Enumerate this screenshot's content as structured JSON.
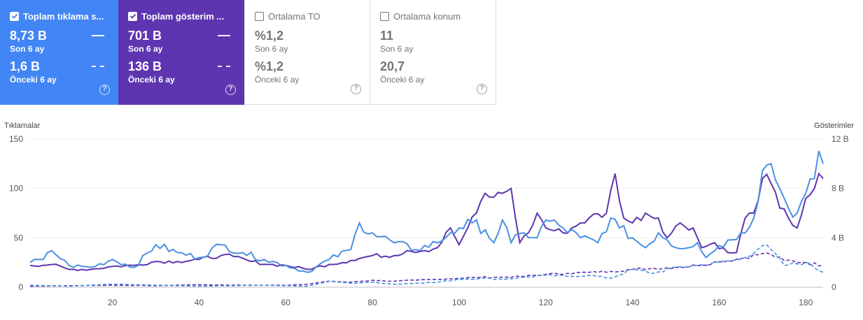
{
  "cards": [
    {
      "label": "Toplam tıklama s...",
      "checked": true,
      "current_value": "8,73 B",
      "current_period": "Son 6 ay",
      "previous_value": "1,6 B",
      "previous_period": "Önceki 6 ay",
      "color": "#4285f4",
      "icon": "help-icon"
    },
    {
      "label": "Toplam gösterim ...",
      "checked": true,
      "current_value": "701 B",
      "current_period": "Son 6 ay",
      "previous_value": "136 B",
      "previous_period": "Önceki 6 ay",
      "color": "#5e35b1",
      "icon": "help-icon"
    },
    {
      "label": "Ortalama TO",
      "checked": false,
      "current_value": "%1,2",
      "current_period": "Son 6 ay",
      "previous_value": "%1,2",
      "previous_period": "Önceki 6 ay",
      "icon": "help-icon"
    },
    {
      "label": "Ortalama konum",
      "checked": false,
      "current_value": "11",
      "current_period": "Son 6 ay",
      "previous_value": "20,7",
      "previous_period": "Önceki 6 ay",
      "icon": "help-icon"
    }
  ],
  "chart_data": {
    "type": "line",
    "left_axis": {
      "label": "Tıklamalar",
      "ticks": [
        "150",
        "100",
        "50",
        "0"
      ],
      "range": [
        0,
        150
      ]
    },
    "right_axis": {
      "label": "Gösterimler",
      "ticks": [
        "12 B",
        "8 B",
        "4 B",
        "0"
      ],
      "range": [
        0,
        12000
      ]
    },
    "x_axis": {
      "ticks": [
        "20",
        "40",
        "60",
        "80",
        "100",
        "120",
        "140",
        "160",
        "180"
      ],
      "range": [
        1,
        184
      ]
    },
    "grid": true,
    "series_anchors": {
      "clicks_current": [
        [
          1,
          25
        ],
        [
          4,
          28
        ],
        [
          6,
          37
        ],
        [
          10,
          22
        ],
        [
          15,
          20
        ],
        [
          20,
          28
        ],
        [
          25,
          20
        ],
        [
          30,
          43
        ],
        [
          35,
          35
        ],
        [
          40,
          30
        ],
        [
          45,
          43
        ],
        [
          50,
          35
        ],
        [
          55,
          28
        ],
        [
          60,
          22
        ],
        [
          65,
          15
        ],
        [
          70,
          28
        ],
        [
          75,
          38
        ],
        [
          77,
          65
        ],
        [
          80,
          55
        ],
        [
          85,
          45
        ],
        [
          90,
          38
        ],
        [
          95,
          45
        ],
        [
          98,
          55
        ],
        [
          100,
          60
        ],
        [
          103,
          65
        ],
        [
          106,
          58
        ],
        [
          108,
          45
        ],
        [
          110,
          68
        ],
        [
          112,
          45
        ],
        [
          115,
          55
        ],
        [
          118,
          50
        ],
        [
          120,
          68
        ],
        [
          124,
          60
        ],
        [
          128,
          50
        ],
        [
          132,
          45
        ],
        [
          135,
          70
        ],
        [
          137,
          60
        ],
        [
          140,
          50
        ],
        [
          143,
          40
        ],
        [
          146,
          55
        ],
        [
          148,
          48
        ],
        [
          150,
          40
        ],
        [
          155,
          45
        ],
        [
          157,
          30
        ],
        [
          160,
          42
        ],
        [
          163,
          48
        ],
        [
          165,
          55
        ],
        [
          168,
          70
        ],
        [
          170,
          118
        ],
        [
          172,
          125
        ],
        [
          174,
          100
        ],
        [
          176,
          80
        ],
        [
          178,
          75
        ],
        [
          180,
          95
        ],
        [
          182,
          110
        ],
        [
          183,
          138
        ],
        [
          184,
          125
        ]
      ],
      "impressions_current": [
        [
          1,
          1760
        ],
        [
          6,
          1840
        ],
        [
          10,
          1440
        ],
        [
          15,
          1440
        ],
        [
          20,
          1680
        ],
        [
          25,
          1760
        ],
        [
          30,
          2080
        ],
        [
          35,
          2080
        ],
        [
          40,
          2240
        ],
        [
          45,
          2560
        ],
        [
          48,
          2480
        ],
        [
          52,
          2080
        ],
        [
          56,
          1840
        ],
        [
          60,
          1760
        ],
        [
          65,
          1440
        ],
        [
          70,
          1840
        ],
        [
          75,
          2160
        ],
        [
          80,
          2560
        ],
        [
          85,
          2560
        ],
        [
          88,
          2960
        ],
        [
          92,
          2960
        ],
        [
          95,
          3200
        ],
        [
          98,
          4800
        ],
        [
          100,
          3440
        ],
        [
          102,
          4800
        ],
        [
          104,
          6000
        ],
        [
          106,
          7600
        ],
        [
          108,
          7280
        ],
        [
          110,
          7600
        ],
        [
          112,
          8000
        ],
        [
          114,
          3600
        ],
        [
          116,
          4400
        ],
        [
          118,
          6000
        ],
        [
          120,
          4800
        ],
        [
          124,
          4400
        ],
        [
          128,
          5200
        ],
        [
          130,
          5600
        ],
        [
          134,
          6000
        ],
        [
          136,
          9200
        ],
        [
          138,
          5600
        ],
        [
          140,
          5200
        ],
        [
          143,
          6000
        ],
        [
          146,
          5600
        ],
        [
          148,
          4000
        ],
        [
          151,
          5200
        ],
        [
          154,
          4800
        ],
        [
          156,
          3200
        ],
        [
          159,
          3600
        ],
        [
          162,
          2800
        ],
        [
          164,
          2800
        ],
        [
          166,
          5600
        ],
        [
          168,
          6000
        ],
        [
          170,
          8800
        ],
        [
          172,
          8400
        ],
        [
          174,
          6400
        ],
        [
          176,
          5600
        ],
        [
          178,
          4800
        ],
        [
          180,
          7200
        ],
        [
          182,
          8000
        ],
        [
          183,
          9200
        ],
        [
          184,
          8800
        ]
      ],
      "clicks_previous": [
        [
          1,
          2
        ],
        [
          10,
          1
        ],
        [
          20,
          3
        ],
        [
          30,
          2
        ],
        [
          40,
          1
        ],
        [
          55,
          2
        ],
        [
          65,
          1
        ],
        [
          70,
          6
        ],
        [
          75,
          4
        ],
        [
          80,
          5
        ],
        [
          85,
          3
        ],
        [
          90,
          4
        ],
        [
          95,
          5
        ],
        [
          100,
          8
        ],
        [
          105,
          9
        ],
        [
          110,
          8
        ],
        [
          115,
          10
        ],
        [
          120,
          12
        ],
        [
          125,
          11
        ],
        [
          130,
          12
        ],
        [
          135,
          9
        ],
        [
          140,
          18
        ],
        [
          145,
          14
        ],
        [
          150,
          20
        ],
        [
          155,
          22
        ],
        [
          160,
          25
        ],
        [
          165,
          28
        ],
        [
          170,
          42
        ],
        [
          172,
          38
        ],
        [
          175,
          22
        ],
        [
          180,
          25
        ],
        [
          184,
          15
        ]
      ],
      "impressions_previous": [
        [
          1,
          80
        ],
        [
          10,
          120
        ],
        [
          20,
          160
        ],
        [
          30,
          120
        ],
        [
          40,
          200
        ],
        [
          50,
          160
        ],
        [
          60,
          160
        ],
        [
          65,
          240
        ],
        [
          70,
          480
        ],
        [
          75,
          400
        ],
        [
          80,
          560
        ],
        [
          85,
          480
        ],
        [
          90,
          560
        ],
        [
          95,
          640
        ],
        [
          100,
          720
        ],
        [
          105,
          800
        ],
        [
          110,
          800
        ],
        [
          115,
          880
        ],
        [
          120,
          1040
        ],
        [
          125,
          1120
        ],
        [
          130,
          1200
        ],
        [
          135,
          1280
        ],
        [
          140,
          1440
        ],
        [
          145,
          1520
        ],
        [
          150,
          1600
        ],
        [
          155,
          1760
        ],
        [
          160,
          2080
        ],
        [
          165,
          2320
        ],
        [
          170,
          2720
        ],
        [
          172,
          2640
        ],
        [
          175,
          2160
        ],
        [
          180,
          2000
        ],
        [
          184,
          1760
        ]
      ]
    },
    "colors": {
      "clicks": "#4a90e2",
      "impressions": "#5e35b1"
    }
  }
}
